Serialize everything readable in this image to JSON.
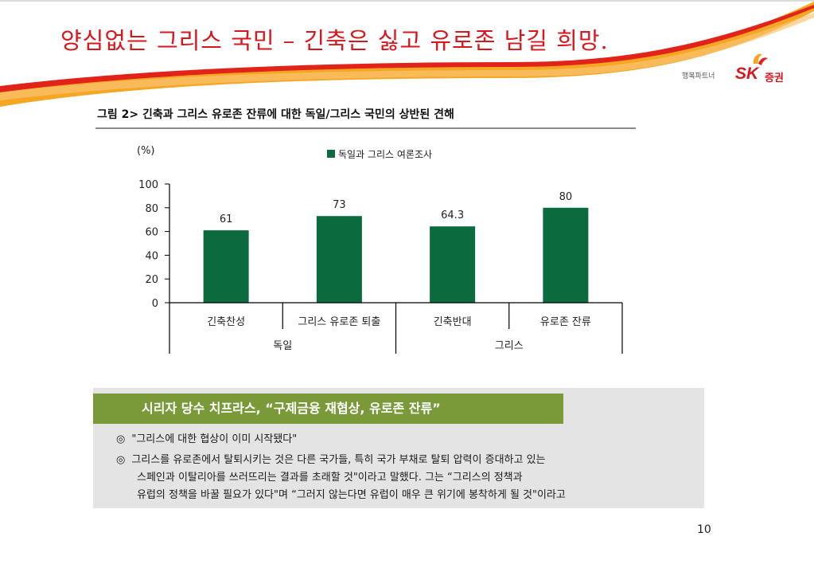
{
  "slide": {
    "title": "양심없는 그리스 국민 – 긴축은 싫고 유로존 남길 희망.",
    "page_number": "10",
    "brand": {
      "tagline": "행복파트너",
      "logo_sk": "SK",
      "logo_suffix": "증권",
      "color": "#d9161c"
    }
  },
  "figure": {
    "title": "그림 2> 긴축과 그리스 유로존 잔류에 대한 독일/그리스 국민의 상반된 견해"
  },
  "chart_data": {
    "type": "bar",
    "ylabel": "(%)",
    "ylim": [
      0,
      100
    ],
    "yticks": [
      0,
      20,
      40,
      60,
      80,
      100
    ],
    "series": [
      {
        "name": "독일과 그리스 여론조사",
        "color": "#0b6a3e",
        "values": [
          61,
          73,
          64.3,
          80
        ]
      }
    ],
    "categories": [
      "긴축찬성",
      "그리스 유로존 퇴출",
      "긴축반대",
      "유로존 잔류"
    ],
    "data_labels": [
      "61",
      "73",
      "64.3",
      "80"
    ],
    "groups": [
      {
        "label": "독일",
        "categories": [
          0,
          1
        ]
      },
      {
        "label": "그리스",
        "categories": [
          2,
          3
        ]
      }
    ],
    "legend_position": "top"
  },
  "textbox": {
    "header": "시리자 당수 치프라스, “구제금융 재협상, 유로존 잔류”",
    "bullet_symbol": "◎",
    "lines": [
      "\"그리스에 대한 협상이 이미 시작됐다\"",
      "그리스를 유로존에서 탈퇴시키는 것은 다른 국가들, 특히 국가 부채로 탈퇴 압력이 증대하고 있는",
      "스페인과 이탈리아를 쓰러뜨리는 결과를 초래할 것\"이라고 말했다. 그는 “그리스의 정책과",
      "유럽의 정책을 바꿀 필요가 있다\"며 “그러지 않는다면 유럽이 매우 큰 위기에 봉착하게 될 것\"이라고"
    ]
  }
}
